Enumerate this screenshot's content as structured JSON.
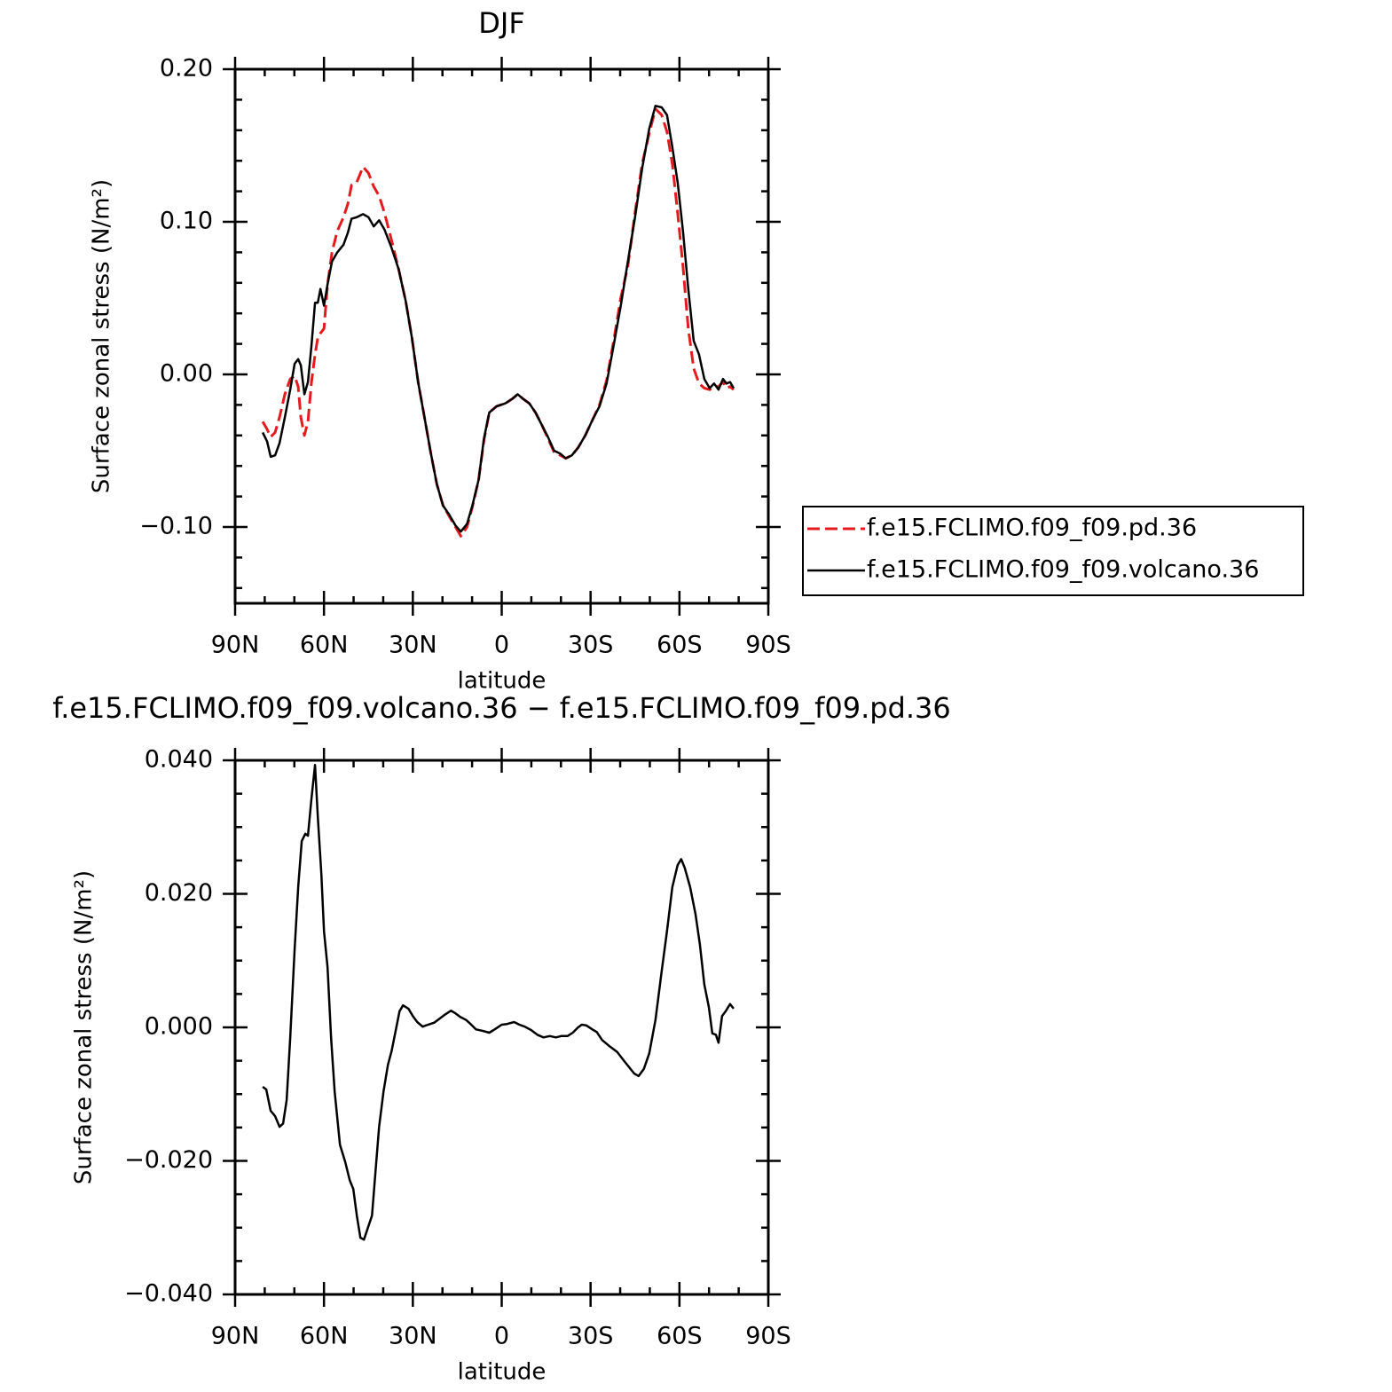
{
  "chart_data": [
    {
      "type": "line",
      "title": "DJF",
      "xlabel": "latitude",
      "ylabel": "Surface zonal stress (N/m²)",
      "xlim": [
        90,
        -90
      ],
      "xticks": [
        {
          "value": 90,
          "label": "90N"
        },
        {
          "value": 60,
          "label": "60N"
        },
        {
          "value": 30,
          "label": "30N"
        },
        0,
        {
          "value": -30,
          "label": "30S"
        },
        {
          "value": -60,
          "label": "60S"
        },
        {
          "value": -90,
          "label": "90S"
        }
      ],
      "xminorticks": [
        80,
        70,
        50,
        40,
        20,
        10,
        -10,
        -20,
        -40,
        -50,
        -70,
        -80
      ],
      "ylim": [
        -0.15,
        0.2
      ],
      "yticks": [
        {
          "value": 0.2,
          "label": "0.20"
        },
        {
          "value": 0.1,
          "label": "0.10"
        },
        {
          "value": 0,
          "label": "0.00"
        },
        {
          "value": -0.1,
          "label": "−0.10"
        }
      ],
      "yminorticks": [
        -0.14,
        -0.12,
        -0.08,
        -0.06,
        -0.04,
        -0.02,
        0.02,
        0.04,
        0.06,
        0.08,
        0.12,
        0.14,
        0.16,
        0.18
      ],
      "x": [
        80.7,
        79.2,
        78,
        76.5,
        75,
        73.2,
        71.4,
        69.9,
        68.7,
        67.8,
        66.6,
        65.4,
        64.2,
        63,
        62.1,
        61.2,
        60,
        58.8,
        57.3,
        55.5,
        53.4,
        51.9,
        50.7,
        48.9,
        46.8,
        45,
        43.2,
        41.4,
        39.6,
        37.2,
        34.8,
        32.4,
        30.3,
        28.2,
        26.1,
        24,
        21.9,
        19.8,
        17.7,
        15.6,
        13.8,
        11.7,
        9.9,
        7.8,
        6,
        4.2,
        1.8,
        -1.2,
        -3.6,
        -5.4,
        -7.2,
        -9.3,
        -11.4,
        -13.5,
        -15.6,
        -17.7,
        -19.8,
        -21.6,
        -23.7,
        -25.8,
        -28.2,
        -30.6,
        -33,
        -35.4,
        -37.8,
        -40.2,
        -42.6,
        -45,
        -47.4,
        -49.8,
        -51.9,
        -54,
        -55.8,
        -57.6,
        -59.4,
        -61.2,
        -63,
        -64.8,
        -66.6,
        -68.4,
        -70.2,
        -71.7,
        -73.2,
        -74.7,
        -75.9,
        -77.1,
        -78.3
      ],
      "series": [
        {
          "name": "f.e15.FCLIMO.f09_f09.pd.36",
          "color": "#e41a1c",
          "dashed": true,
          "values": [
            -0.031,
            -0.036,
            -0.041,
            -0.038,
            -0.028,
            -0.013,
            -0.003,
            -0.001,
            -0.008,
            -0.028,
            -0.04,
            -0.031,
            -0.005,
            0.013,
            0.024,
            0.027,
            0.03,
            0.059,
            0.08,
            0.094,
            0.103,
            0.112,
            0.124,
            0.126,
            0.136,
            0.132,
            0.123,
            0.117,
            0.106,
            0.088,
            0.069,
            0.048,
            0.024,
            -0.005,
            -0.028,
            -0.051,
            -0.072,
            -0.086,
            -0.093,
            -0.1,
            -0.106,
            -0.1,
            -0.087,
            -0.069,
            -0.043,
            -0.025,
            -0.021,
            -0.019,
            -0.016,
            -0.013,
            -0.016,
            -0.019,
            -0.025,
            -0.033,
            -0.042,
            -0.051,
            -0.053,
            -0.055,
            -0.053,
            -0.048,
            -0.04,
            -0.03,
            -0.02,
            -0.004,
            0.022,
            0.05,
            0.071,
            0.106,
            0.138,
            0.158,
            0.174,
            0.17,
            0.159,
            0.138,
            0.106,
            0.071,
            0.03,
            0.004,
            -0.006,
            -0.009,
            -0.01,
            -0.008,
            -0.008,
            -0.005,
            -0.009,
            -0.008,
            -0.01
          ]
        },
        {
          "name": "f.e15.FCLIMO.f09_f09.volcano.36",
          "color": "#000000",
          "dashed": false,
          "values": [
            -0.038,
            -0.044,
            -0.054,
            -0.053,
            -0.045,
            -0.028,
            -0.01,
            0.007,
            0.01,
            0.006,
            -0.013,
            -0.005,
            0.019,
            0.047,
            0.047,
            0.056,
            0.045,
            0.059,
            0.074,
            0.08,
            0.085,
            0.093,
            0.102,
            0.103,
            0.105,
            0.103,
            0.097,
            0.101,
            0.095,
            0.083,
            0.069,
            0.048,
            0.024,
            -0.005,
            -0.028,
            -0.051,
            -0.072,
            -0.086,
            -0.092,
            -0.099,
            -0.103,
            -0.098,
            -0.086,
            -0.069,
            -0.042,
            -0.025,
            -0.021,
            -0.019,
            -0.016,
            -0.013,
            -0.016,
            -0.019,
            -0.025,
            -0.033,
            -0.041,
            -0.05,
            -0.052,
            -0.055,
            -0.053,
            -0.048,
            -0.04,
            -0.03,
            -0.021,
            -0.006,
            0.019,
            0.045,
            0.074,
            0.103,
            0.135,
            0.161,
            0.176,
            0.175,
            0.17,
            0.149,
            0.126,
            0.094,
            0.056,
            0.022,
            0.013,
            -0.003,
            -0.009,
            -0.006,
            -0.01,
            -0.003,
            -0.006,
            -0.005,
            -0.009
          ]
        }
      ]
    },
    {
      "type": "line",
      "title": "f.e15.FCLIMO.f09_f09.volcano.36 − f.e15.FCLIMO.f09_f09.pd.36",
      "xlabel": "latitude",
      "ylabel": "Surface zonal stress (N/m²)",
      "xlim": [
        90,
        -90
      ],
      "xticks": [
        {
          "value": 90,
          "label": "90N"
        },
        {
          "value": 60,
          "label": "60N"
        },
        {
          "value": 30,
          "label": "30N"
        },
        0,
        {
          "value": -30,
          "label": "30S"
        },
        {
          "value": -60,
          "label": "60S"
        },
        {
          "value": -90,
          "label": "90S"
        }
      ],
      "xminorticks": [
        80,
        70,
        50,
        40,
        20,
        10,
        -10,
        -20,
        -40,
        -50,
        -70,
        -80
      ],
      "ylim": [
        -0.04,
        0.04
      ],
      "yticks": [
        {
          "value": 0.04,
          "label": "0.040"
        },
        {
          "value": 0.02,
          "label": "0.020"
        },
        {
          "value": 0,
          "label": "0.000"
        },
        {
          "value": -0.02,
          "label": "−0.020"
        },
        {
          "value": -0.04,
          "label": "−0.040"
        }
      ],
      "yminorticks": [
        -0.035,
        -0.03,
        -0.025,
        -0.015,
        -0.01,
        -0.005,
        0.005,
        0.01,
        0.015,
        0.025,
        0.03,
        0.035
      ],
      "color": "#000000",
      "x": [
        80.7,
        79.5,
        78,
        76.5,
        75,
        73.8,
        72.6,
        71.4,
        69.9,
        68.7,
        67.5,
        66.3,
        65.4,
        64.2,
        63,
        62.1,
        60.9,
        60,
        58.8,
        57.6,
        56.4,
        54.6,
        52.8,
        51.3,
        50.1,
        48.9,
        47.7,
        46.5,
        45.3,
        43.8,
        42.6,
        41.4,
        39.9,
        38.4,
        37.2,
        35.7,
        34.5,
        33.3,
        31.5,
        30,
        28.5,
        26.7,
        24.9,
        22.8,
        21,
        19.2,
        17.1,
        15.6,
        14.1,
        12,
        10.5,
        8.7,
        6.6,
        4.2,
        2.4,
        0,
        -1.8,
        -4.2,
        -6,
        -7.8,
        -9.9,
        -12,
        -14.1,
        -16.2,
        -18.3,
        -20.1,
        -22.2,
        -24,
        -25.8,
        -27,
        -28.5,
        -30.6,
        -32.1,
        -33.9,
        -36.6,
        -39,
        -41.1,
        -42.9,
        -44.7,
        -46.2,
        -48,
        -49.8,
        -51.9,
        -54,
        -55.8,
        -57.6,
        -59.4,
        -60.6,
        -61.8,
        -63.6,
        -65.4,
        -66.9,
        -68.4,
        -69.9,
        -71.1,
        -72.3,
        -73.2,
        -74.4,
        -75.6,
        -77.1,
        -78.3
      ],
      "values": [
        -0.0089,
        -0.0093,
        -0.0125,
        -0.0133,
        -0.0149,
        -0.0144,
        -0.0109,
        -0.0016,
        0.0117,
        0.021,
        0.0279,
        0.029,
        0.0287,
        0.0343,
        0.0393,
        0.0316,
        0.023,
        0.0144,
        0.009,
        -0.0016,
        -0.0096,
        -0.0176,
        -0.0202,
        -0.0229,
        -0.0242,
        -0.0282,
        -0.0315,
        -0.0318,
        -0.0302,
        -0.0282,
        -0.0215,
        -0.0149,
        -0.0096,
        -0.0056,
        -0.0036,
        -0.0003,
        0.0024,
        0.0033,
        0.0028,
        0.0017,
        0.0008,
        0.0001,
        0.0004,
        0.0007,
        0.0013,
        0.0019,
        0.0025,
        0.0021,
        0.0016,
        0.0011,
        0.0005,
        -0.0003,
        -0.0005,
        -0.0008,
        -0.0003,
        0.0004,
        0.0005,
        0.0008,
        0.0004,
        0.0001,
        -0.0004,
        -0.0011,
        -0.0015,
        -0.0013,
        -0.0015,
        -0.0013,
        -0.0013,
        -0.0008,
        0,
        0.0004,
        0.0003,
        -0.0003,
        -0.0007,
        -0.0019,
        -0.0029,
        -0.0037,
        -0.0049,
        -0.0059,
        -0.0069,
        -0.0073,
        -0.0062,
        -0.0039,
        0.0011,
        0.0084,
        0.0144,
        0.021,
        0.0243,
        0.0252,
        0.0239,
        0.021,
        0.017,
        0.0124,
        0.0064,
        0.0031,
        -0.0009,
        -0.0011,
        -0.0023,
        0.0017,
        0.0024,
        0.0035,
        0.0028
      ]
    }
  ]
}
